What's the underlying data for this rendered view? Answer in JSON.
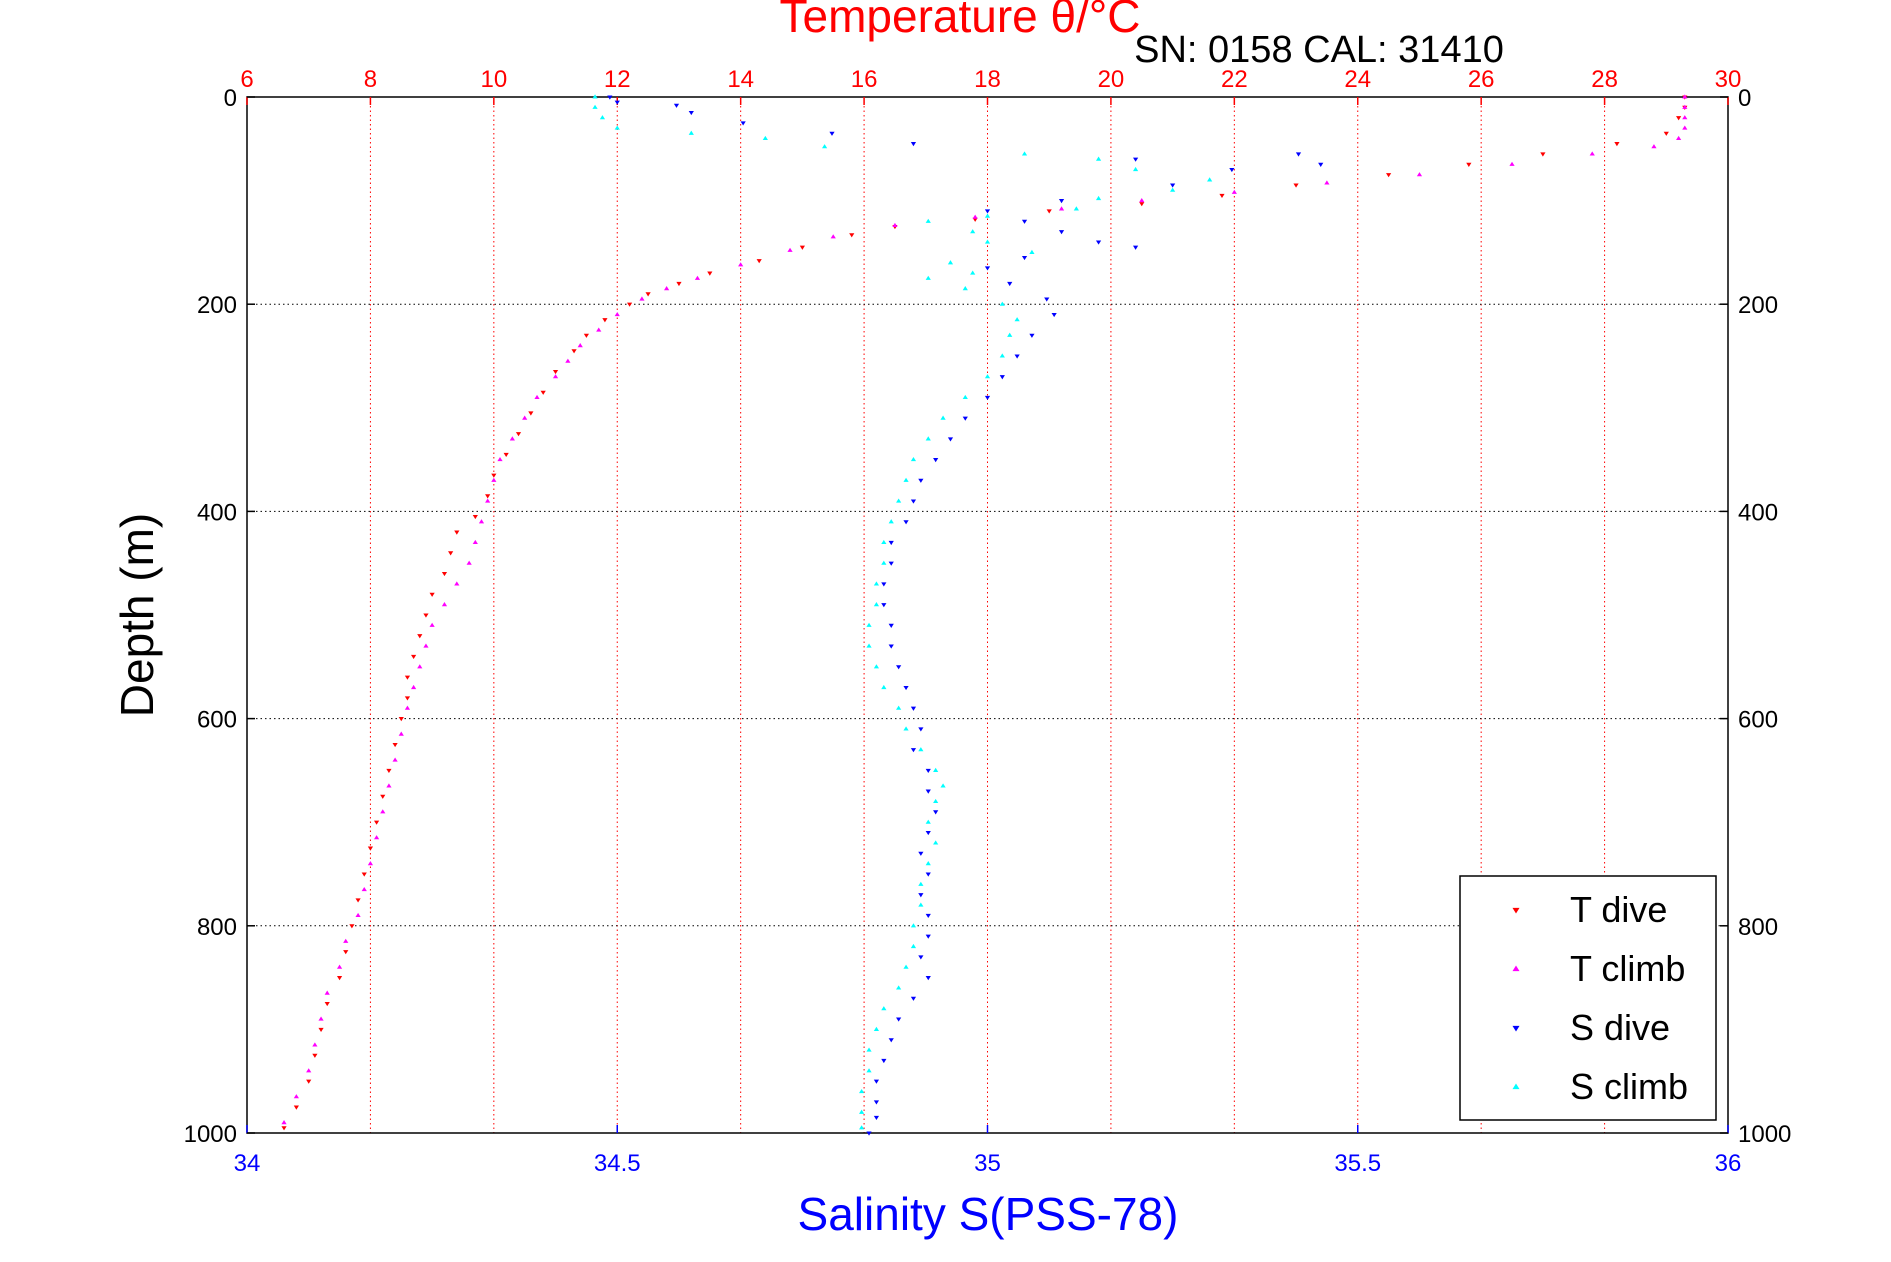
{
  "chart_data": {
    "type": "scatter",
    "title": "Temperature θ/°C",
    "subtitle": "SN: 0158  CAL: 31410",
    "xlabel_bottom": "Salinity S(PSS-78)",
    "xlabel_top": "Temperature θ/°C",
    "ylabel": "Depth (m)",
    "ylim": [
      1000,
      0
    ],
    "xlim_temperature": [
      6,
      30
    ],
    "xlim_salinity": [
      34,
      36
    ],
    "top_ticks": [
      "6",
      "8",
      "10",
      "12",
      "14",
      "16",
      "18",
      "20",
      "22",
      "24",
      "26",
      "28",
      "30"
    ],
    "bottom_ticks": [
      "34",
      "34.5",
      "35",
      "35.5",
      "36"
    ],
    "y_ticks": [
      "0",
      "200",
      "400",
      "600",
      "800",
      "1000"
    ],
    "grid": true,
    "legend_position": "bottom-right",
    "series": [
      {
        "name": "T dive",
        "axis": "temperature",
        "color": "#ff0000",
        "marker": "triangle-down",
        "points": [
          [
            29.3,
            0
          ],
          [
            29.3,
            10
          ],
          [
            29.2,
            20
          ],
          [
            29.0,
            35
          ],
          [
            28.2,
            45
          ],
          [
            27.0,
            55
          ],
          [
            25.8,
            65
          ],
          [
            24.5,
            75
          ],
          [
            23.0,
            85
          ],
          [
            21.8,
            95
          ],
          [
            20.5,
            103
          ],
          [
            19.0,
            110
          ],
          [
            17.8,
            118
          ],
          [
            16.5,
            125
          ],
          [
            15.8,
            133
          ],
          [
            15.0,
            145
          ],
          [
            14.3,
            158
          ],
          [
            13.5,
            170
          ],
          [
            13.0,
            180
          ],
          [
            12.5,
            190
          ],
          [
            12.2,
            200
          ],
          [
            11.8,
            215
          ],
          [
            11.5,
            230
          ],
          [
            11.3,
            245
          ],
          [
            11.0,
            265
          ],
          [
            10.8,
            285
          ],
          [
            10.6,
            305
          ],
          [
            10.4,
            325
          ],
          [
            10.2,
            345
          ],
          [
            10.0,
            365
          ],
          [
            9.9,
            385
          ],
          [
            9.7,
            405
          ],
          [
            9.4,
            420
          ],
          [
            9.3,
            440
          ],
          [
            9.2,
            460
          ],
          [
            9.0,
            480
          ],
          [
            8.9,
            500
          ],
          [
            8.8,
            520
          ],
          [
            8.7,
            540
          ],
          [
            8.6,
            560
          ],
          [
            8.6,
            580
          ],
          [
            8.5,
            600
          ],
          [
            8.4,
            625
          ],
          [
            8.3,
            650
          ],
          [
            8.2,
            675
          ],
          [
            8.1,
            700
          ],
          [
            8.0,
            725
          ],
          [
            7.9,
            750
          ],
          [
            7.8,
            775
          ],
          [
            7.7,
            800
          ],
          [
            7.6,
            825
          ],
          [
            7.5,
            850
          ],
          [
            7.3,
            875
          ],
          [
            7.2,
            900
          ],
          [
            7.1,
            925
          ],
          [
            7.0,
            950
          ],
          [
            6.8,
            975
          ],
          [
            6.6,
            995
          ]
        ]
      },
      {
        "name": "T climb",
        "axis": "temperature",
        "color": "#ff00ff",
        "marker": "triangle-up",
        "points": [
          [
            29.3,
            0
          ],
          [
            29.3,
            10
          ],
          [
            29.3,
            20
          ],
          [
            29.3,
            30
          ],
          [
            29.2,
            40
          ],
          [
            28.8,
            48
          ],
          [
            27.8,
            55
          ],
          [
            26.5,
            65
          ],
          [
            25.0,
            75
          ],
          [
            23.5,
            83
          ],
          [
            22.0,
            92
          ],
          [
            20.5,
            100
          ],
          [
            19.2,
            108
          ],
          [
            17.8,
            116
          ],
          [
            16.5,
            124
          ],
          [
            15.5,
            135
          ],
          [
            14.8,
            148
          ],
          [
            14.0,
            162
          ],
          [
            13.3,
            175
          ],
          [
            12.8,
            185
          ],
          [
            12.4,
            195
          ],
          [
            12.0,
            210
          ],
          [
            11.7,
            225
          ],
          [
            11.4,
            240
          ],
          [
            11.2,
            255
          ],
          [
            11.0,
            270
          ],
          [
            10.7,
            290
          ],
          [
            10.5,
            310
          ],
          [
            10.3,
            330
          ],
          [
            10.1,
            350
          ],
          [
            10.0,
            370
          ],
          [
            9.9,
            390
          ],
          [
            9.8,
            410
          ],
          [
            9.7,
            430
          ],
          [
            9.6,
            450
          ],
          [
            9.4,
            470
          ],
          [
            9.2,
            490
          ],
          [
            9.0,
            510
          ],
          [
            8.9,
            530
          ],
          [
            8.8,
            550
          ],
          [
            8.7,
            570
          ],
          [
            8.6,
            590
          ],
          [
            8.5,
            615
          ],
          [
            8.4,
            640
          ],
          [
            8.3,
            665
          ],
          [
            8.2,
            690
          ],
          [
            8.1,
            715
          ],
          [
            8.0,
            740
          ],
          [
            7.9,
            765
          ],
          [
            7.8,
            790
          ],
          [
            7.6,
            815
          ],
          [
            7.5,
            840
          ],
          [
            7.3,
            865
          ],
          [
            7.2,
            890
          ],
          [
            7.1,
            915
          ],
          [
            7.0,
            940
          ],
          [
            6.8,
            965
          ],
          [
            6.6,
            990
          ]
        ]
      },
      {
        "name": "S dive",
        "axis": "salinity",
        "color": "#0000ff",
        "marker": "triangle-down",
        "points": [
          [
            34.49,
            0
          ],
          [
            34.5,
            5
          ],
          [
            34.58,
            8
          ],
          [
            34.6,
            15
          ],
          [
            34.67,
            25
          ],
          [
            34.79,
            35
          ],
          [
            34.9,
            45
          ],
          [
            35.2,
            60
          ],
          [
            35.33,
            70
          ],
          [
            35.42,
            55
          ],
          [
            35.45,
            65
          ],
          [
            35.25,
            85
          ],
          [
            35.1,
            100
          ],
          [
            35.0,
            110
          ],
          [
            35.05,
            120
          ],
          [
            35.1,
            130
          ],
          [
            35.15,
            140
          ],
          [
            35.2,
            145
          ],
          [
            35.05,
            155
          ],
          [
            35.0,
            165
          ],
          [
            35.03,
            180
          ],
          [
            35.08,
            195
          ],
          [
            35.09,
            210
          ],
          [
            35.06,
            230
          ],
          [
            35.04,
            250
          ],
          [
            35.02,
            270
          ],
          [
            35.0,
            290
          ],
          [
            34.97,
            310
          ],
          [
            34.95,
            330
          ],
          [
            34.93,
            350
          ],
          [
            34.91,
            370
          ],
          [
            34.9,
            390
          ],
          [
            34.89,
            410
          ],
          [
            34.87,
            430
          ],
          [
            34.87,
            450
          ],
          [
            34.86,
            470
          ],
          [
            34.86,
            490
          ],
          [
            34.87,
            510
          ],
          [
            34.87,
            530
          ],
          [
            34.88,
            550
          ],
          [
            34.89,
            570
          ],
          [
            34.9,
            590
          ],
          [
            34.91,
            610
          ],
          [
            34.9,
            630
          ],
          [
            34.92,
            650
          ],
          [
            34.92,
            670
          ],
          [
            34.93,
            690
          ],
          [
            34.92,
            710
          ],
          [
            34.91,
            730
          ],
          [
            34.92,
            750
          ],
          [
            34.91,
            770
          ],
          [
            34.92,
            790
          ],
          [
            34.92,
            810
          ],
          [
            34.91,
            830
          ],
          [
            34.92,
            850
          ],
          [
            34.9,
            870
          ],
          [
            34.88,
            890
          ],
          [
            34.87,
            910
          ],
          [
            34.86,
            930
          ],
          [
            34.85,
            950
          ],
          [
            34.85,
            970
          ],
          [
            34.85,
            985
          ],
          [
            34.84,
            1000
          ]
        ]
      },
      {
        "name": "S climb",
        "axis": "salinity",
        "color": "#00ffff",
        "marker": "triangle-up",
        "points": [
          [
            34.47,
            0
          ],
          [
            34.47,
            10
          ],
          [
            34.48,
            20
          ],
          [
            34.5,
            30
          ],
          [
            34.6,
            35
          ],
          [
            34.7,
            40
          ],
          [
            34.78,
            48
          ],
          [
            35.05,
            55
          ],
          [
            35.15,
            60
          ],
          [
            35.2,
            70
          ],
          [
            35.3,
            80
          ],
          [
            35.25,
            90
          ],
          [
            35.15,
            98
          ],
          [
            35.12,
            108
          ],
          [
            35.0,
            115
          ],
          [
            34.92,
            120
          ],
          [
            34.98,
            130
          ],
          [
            35.0,
            140
          ],
          [
            35.06,
            150
          ],
          [
            34.95,
            160
          ],
          [
            34.98,
            170
          ],
          [
            34.92,
            175
          ],
          [
            34.97,
            185
          ],
          [
            35.02,
            200
          ],
          [
            35.04,
            215
          ],
          [
            35.03,
            230
          ],
          [
            35.02,
            250
          ],
          [
            35.0,
            270
          ],
          [
            34.97,
            290
          ],
          [
            34.94,
            310
          ],
          [
            34.92,
            330
          ],
          [
            34.9,
            350
          ],
          [
            34.89,
            370
          ],
          [
            34.88,
            390
          ],
          [
            34.87,
            410
          ],
          [
            34.86,
            430
          ],
          [
            34.86,
            450
          ],
          [
            34.85,
            470
          ],
          [
            34.85,
            490
          ],
          [
            34.84,
            510
          ],
          [
            34.84,
            530
          ],
          [
            34.85,
            550
          ],
          [
            34.86,
            570
          ],
          [
            34.88,
            590
          ],
          [
            34.89,
            610
          ],
          [
            34.91,
            630
          ],
          [
            34.93,
            650
          ],
          [
            34.94,
            665
          ],
          [
            34.93,
            680
          ],
          [
            34.92,
            700
          ],
          [
            34.93,
            720
          ],
          [
            34.92,
            740
          ],
          [
            34.91,
            760
          ],
          [
            34.91,
            780
          ],
          [
            34.9,
            800
          ],
          [
            34.9,
            820
          ],
          [
            34.89,
            840
          ],
          [
            34.88,
            860
          ],
          [
            34.86,
            880
          ],
          [
            34.85,
            900
          ],
          [
            34.84,
            920
          ],
          [
            34.84,
            940
          ],
          [
            34.83,
            960
          ],
          [
            34.83,
            980
          ],
          [
            34.83,
            995
          ]
        ]
      }
    ]
  }
}
